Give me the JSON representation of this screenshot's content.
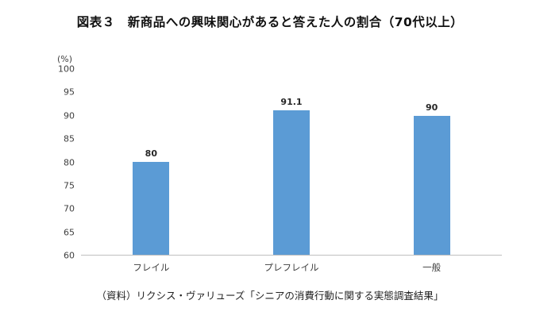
{
  "chart_data": {
    "type": "bar",
    "title": "図表３　新商品への興味関心があると答えた人の割合（70代以上）",
    "categories": [
      "フレイル",
      "プレフレイル",
      "一般"
    ],
    "values": [
      80,
      91.1,
      90
    ],
    "value_labels": [
      "80",
      "91.1",
      "90"
    ],
    "unit_label": "(%)",
    "xlabel": "",
    "ylabel": "(%)",
    "ylim": [
      60,
      100
    ],
    "yticks": [
      60,
      65,
      70,
      75,
      80,
      85,
      90,
      95,
      100
    ],
    "grid": false,
    "legend": false,
    "bar_color": "#5B9BD5"
  },
  "source_note": "（資料）リクシス・ヴァリューズ「シニアの消費行動に関する実態調査結果」",
  "colors": {
    "bar": "#5B9BD5",
    "axis_line": "#BFBFBF",
    "tick_text": "#404040",
    "title_text": "#111111"
  }
}
